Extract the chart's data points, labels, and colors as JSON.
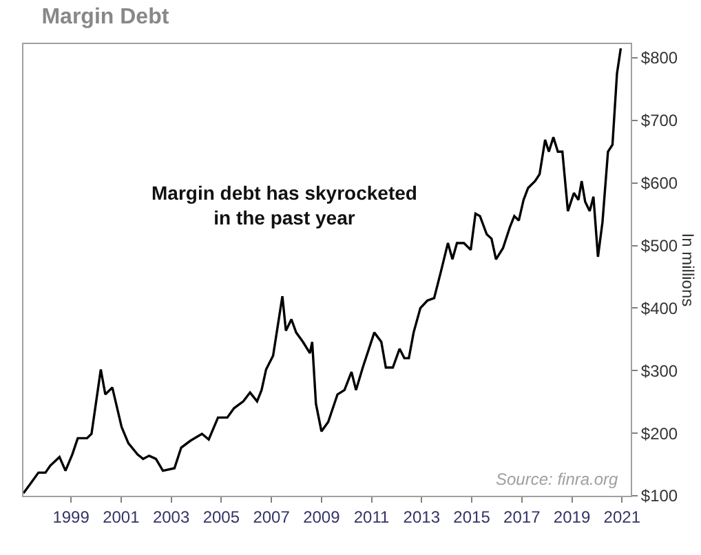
{
  "chart_data": {
    "type": "line",
    "title": "Margin Debt",
    "ylabel": "In millions",
    "annotations": [
      "Margin debt has skyrocketed\nin the past year",
      "Source: finra.org"
    ],
    "series": [
      {
        "color": "#000000",
        "x": [
          1997.1,
          1997.43,
          1997.7,
          1997.98,
          1998.17,
          1998.54,
          1998.78,
          1999.05,
          1999.27,
          1999.64,
          1999.82,
          2000.19,
          2000.37,
          2000.65,
          2001.02,
          2001.29,
          2001.66,
          2001.88,
          2002.12,
          2002.39,
          2002.67,
          2003.13,
          2003.4,
          2003.77,
          2004.23,
          2004.5,
          2004.87,
          2005.24,
          2005.51,
          2005.88,
          2006.15,
          2006.43,
          2006.61,
          2006.79,
          2007.07,
          2007.44,
          2007.58,
          2007.8,
          2007.99,
          2008.26,
          2008.54,
          2008.63,
          2008.78,
          2009.0,
          2009.27,
          2009.64,
          2009.92,
          2010.2,
          2010.38,
          2010.65,
          2011.11,
          2011.39,
          2011.57,
          2011.85,
          2012.12,
          2012.31,
          2012.49,
          2012.68,
          2012.95,
          2013.23,
          2013.5,
          2013.78,
          2014.05,
          2014.23,
          2014.41,
          2014.69,
          2014.96,
          2015.15,
          2015.33,
          2015.6,
          2015.79,
          2015.97,
          2016.25,
          2016.52,
          2016.7,
          2016.88,
          2017.07,
          2017.25,
          2017.53,
          2017.71,
          2017.93,
          2018.08,
          2018.26,
          2018.44,
          2018.62,
          2018.84,
          2019.08,
          2019.26,
          2019.39,
          2019.53,
          2019.71,
          2019.86,
          2020.04,
          2020.22,
          2020.44,
          2020.62,
          2020.8,
          2020.95
        ],
        "values": [
          104,
          122,
          137,
          137,
          148,
          162,
          140,
          166,
          192,
          192,
          199,
          302,
          262,
          273,
          210,
          184,
          166,
          159,
          164,
          159,
          140,
          144,
          177,
          188,
          199,
          190,
          225,
          225,
          240,
          251,
          265,
          251,
          269,
          302,
          324,
          419,
          364,
          382,
          361,
          346,
          328,
          346,
          247,
          203,
          218,
          262,
          269,
          298,
          269,
          305,
          361,
          346,
          305,
          305,
          335,
          320,
          320,
          361,
          400,
          412,
          416,
          460,
          504,
          478,
          504,
          504,
          493,
          551,
          547,
          518,
          511,
          478,
          496,
          529,
          547,
          540,
          573,
          592,
          603,
          614,
          669,
          650,
          673,
          650,
          650,
          555,
          584,
          573,
          603,
          570,
          555,
          578,
          482,
          537,
          650,
          661,
          775,
          815
        ]
      }
    ],
    "xlim": [
      1997.1,
      2021.35
    ],
    "ylim": [
      100,
      822
    ],
    "xticks": [
      1999,
      2001,
      2003,
      2005,
      2007,
      2009,
      2011,
      2013,
      2015,
      2017,
      2019,
      2021
    ],
    "yticks": [
      {
        "value": 100,
        "label": "$100"
      },
      {
        "value": 200,
        "label": "$200"
      },
      {
        "value": 300,
        "label": "$300"
      },
      {
        "value": 400,
        "label": "$400"
      },
      {
        "value": 500,
        "label": "$500"
      },
      {
        "value": 600,
        "label": "$600"
      },
      {
        "value": 700,
        "label": "$700"
      },
      {
        "value": 800,
        "label": "$800"
      }
    ],
    "marker": "none",
    "line_style": "solid"
  }
}
